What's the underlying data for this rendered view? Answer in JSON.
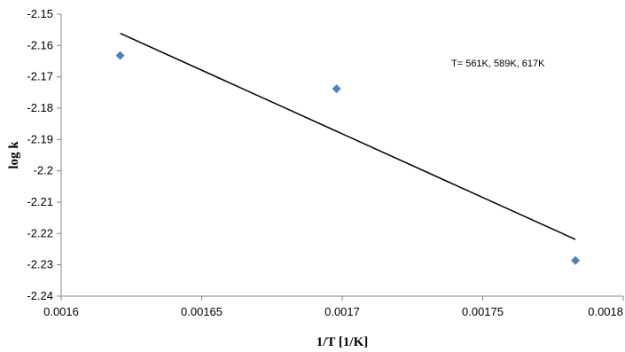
{
  "chart_data": {
    "type": "scatter",
    "title": "",
    "xlabel": "1/T [1/K]",
    "ylabel": "log k",
    "xlim": [
      0.0016,
      0.0018
    ],
    "ylim": [
      -2.24,
      -2.15
    ],
    "x_ticks": [
      0.0016,
      0.00165,
      0.0017,
      0.00175,
      0.0018
    ],
    "x_tick_labels": [
      "0.0016",
      "0.00165",
      "0.0017",
      "0.00175",
      "0.0018"
    ],
    "y_ticks": [
      -2.15,
      -2.16,
      -2.17,
      -2.18,
      -2.19,
      -2.2,
      -2.21,
      -2.22,
      -2.23,
      -2.24
    ],
    "y_tick_labels": [
      "-2.15",
      "-2.16",
      "-2.17",
      "-2.18",
      "-2.19",
      "-2.2",
      "-2.21",
      "-2.22",
      "-2.23",
      "-2.24"
    ],
    "grid": false,
    "legend": "none",
    "series": [
      {
        "marker": "diamond",
        "color": "#4f81bd",
        "points": [
          {
            "x": 0.001621,
            "y": -2.1632
          },
          {
            "x": 0.001698,
            "y": -2.1738
          },
          {
            "x": 0.001783,
            "y": -2.2286
          }
        ]
      }
    ],
    "trendline": {
      "type": "linear",
      "color": "#000000",
      "points": [
        {
          "x": 0.001621,
          "y": -2.1561
        },
        {
          "x": 0.001783,
          "y": -2.2219
        }
      ]
    },
    "annotations": [
      "T= 561K, 589K, 617K"
    ]
  }
}
